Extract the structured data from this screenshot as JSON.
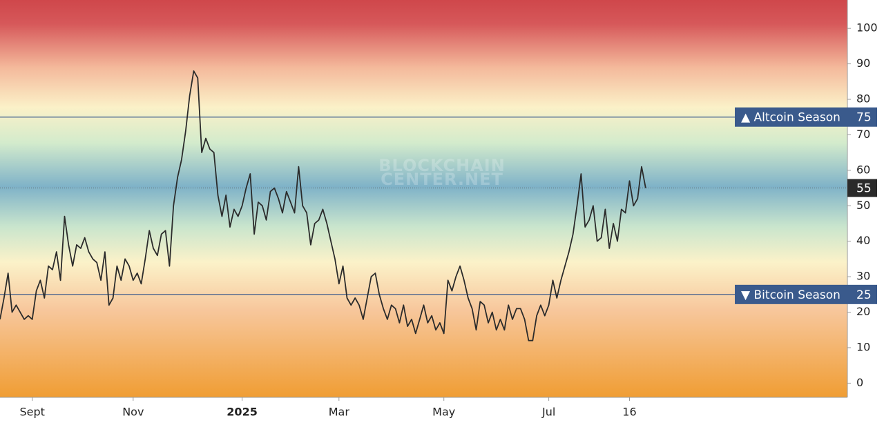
{
  "chart_data": {
    "type": "line",
    "color": "#2b2b2b",
    "values": [
      18,
      24,
      31,
      20,
      22,
      20,
      18,
      19,
      18,
      26,
      29,
      24,
      33,
      32,
      37,
      29,
      47,
      39,
      33,
      39,
      38,
      41,
      37,
      35,
      34,
      29,
      37,
      22,
      24,
      33,
      29,
      35,
      33,
      29,
      31,
      28,
      35,
      43,
      38,
      36,
      42,
      43,
      33,
      50,
      58,
      63,
      71,
      81,
      88,
      86,
      65,
      69,
      66,
      65,
      53,
      47,
      53,
      44,
      49,
      47,
      50,
      55,
      59,
      42,
      51,
      50,
      46,
      54,
      55,
      52,
      48,
      54,
      51,
      48,
      61,
      50,
      48,
      39,
      45,
      46,
      49,
      45,
      40,
      35,
      28,
      33,
      24,
      22,
      24,
      22,
      18,
      24,
      30,
      31,
      25,
      21,
      18,
      22,
      21,
      17,
      22,
      16,
      18,
      14,
      18,
      22,
      17,
      19,
      15,
      17,
      14,
      29,
      26,
      30,
      33,
      29,
      24,
      21,
      15,
      23,
      22,
      17,
      20,
      15,
      18,
      15,
      22,
      18,
      21,
      21,
      18,
      12,
      12,
      19,
      22,
      19,
      22,
      29,
      24,
      29,
      33,
      37,
      42,
      50,
      59,
      44,
      46,
      50,
      40,
      41,
      49,
      38,
      45,
      40,
      49,
      48,
      57,
      50,
      52,
      61,
      55
    ],
    "xlim": [
      0,
      210
    ],
    "xticks": [
      {
        "value": 8,
        "label": "Sept"
      },
      {
        "value": 33,
        "label": "Nov"
      },
      {
        "value": 60,
        "label": "2025"
      },
      {
        "value": 84,
        "label": "Mar"
      },
      {
        "value": 110,
        "label": "May"
      },
      {
        "value": 136,
        "label": "Jul"
      },
      {
        "value": 156,
        "label": "16"
      }
    ],
    "ylim": [
      -4,
      108
    ],
    "yticks": [
      0,
      10,
      20,
      30,
      40,
      50,
      60,
      70,
      80,
      90,
      100
    ],
    "reference_lines": [
      {
        "value": 75,
        "label": "▲ Altcoin Season",
        "color": "#3a5a8c"
      },
      {
        "value": 25,
        "label": "▼ Bitcoin Season",
        "color": "#3a5a8c"
      }
    ],
    "watermark": [
      "BLOCKCHAIN",
      "CENTER.NET"
    ]
  }
}
